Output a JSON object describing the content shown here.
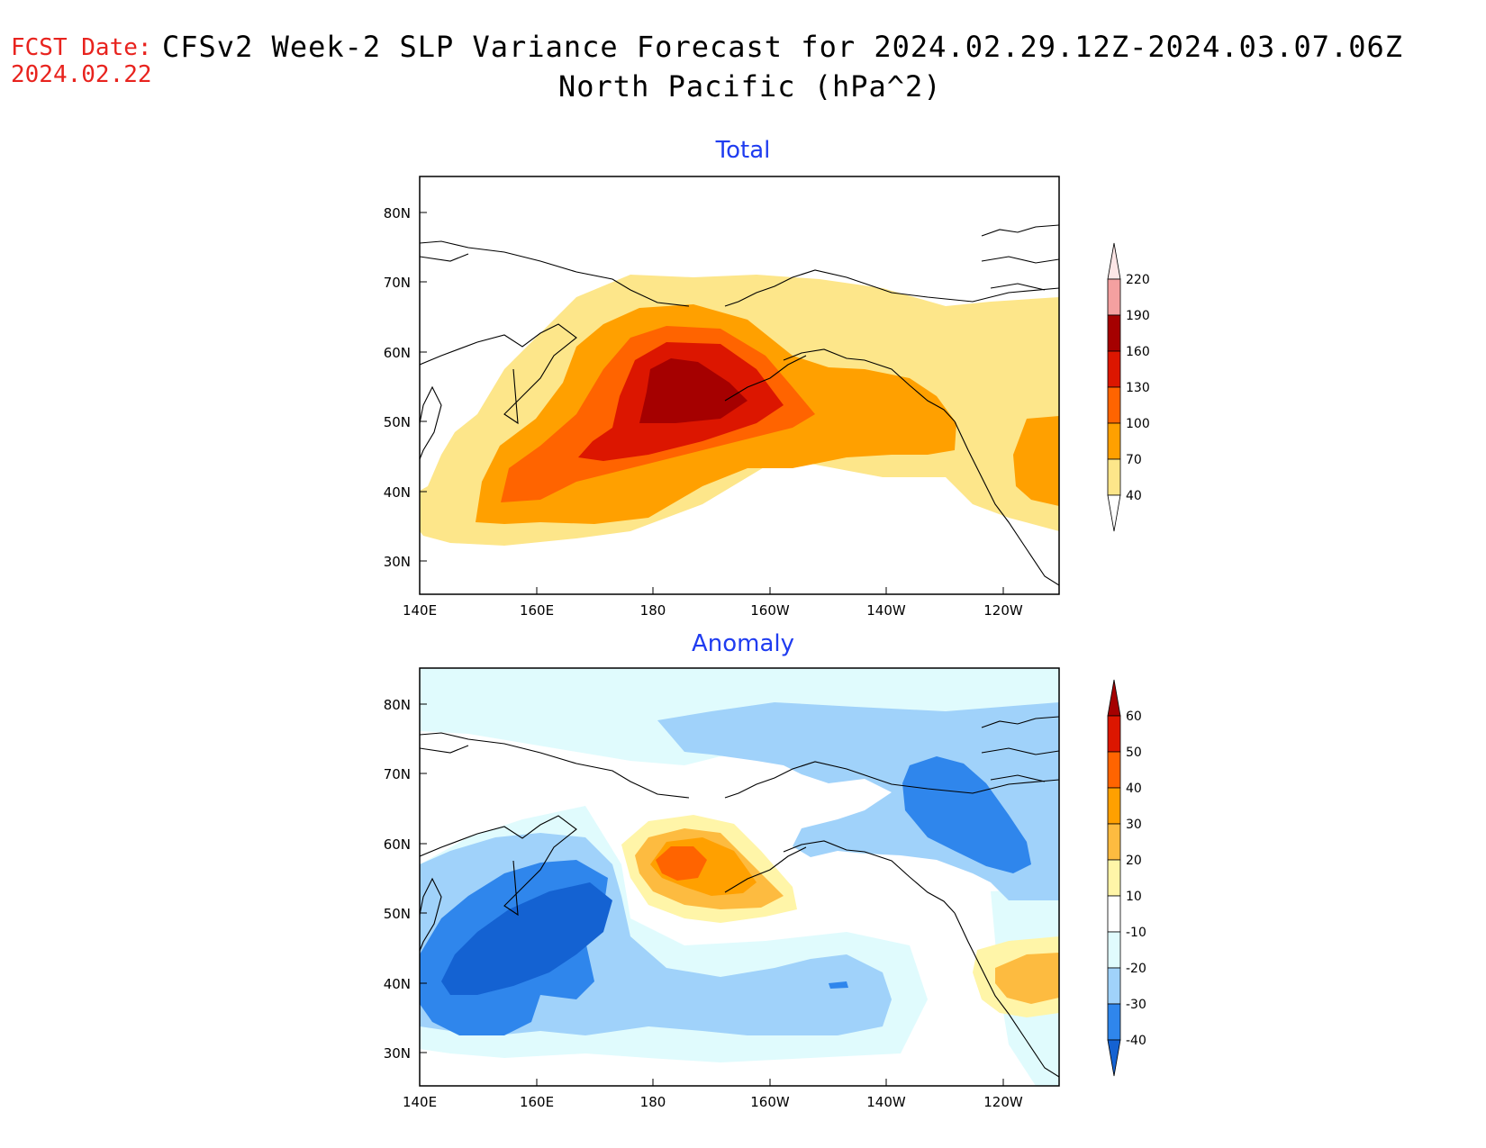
{
  "header": {
    "fcst_label": "FCST Date:",
    "fcst_date": "2024.02.22",
    "title_line1": "CFSv2 Week-2 SLP Variance Forecast for 2024.02.29.12Z-2024.03.07.06Z",
    "title_line2": "North Pacific (hPa^2)"
  },
  "axes": {
    "lat_labels": [
      "80N",
      "70N",
      "60N",
      "50N",
      "40N",
      "30N"
    ],
    "lon_labels": [
      "140E",
      "160E",
      "180",
      "160W",
      "140W",
      "120W"
    ]
  },
  "panels": [
    {
      "title": "Total",
      "colorbar": {
        "labels": [
          "220",
          "190",
          "160",
          "130",
          "100",
          "70",
          "40"
        ],
        "colors": [
          "#fcdcdc",
          "#f4a0a0",
          "#a50000",
          "#dc1600",
          "#ff6400",
          "#ffa000",
          "#fde68a"
        ]
      }
    },
    {
      "title": "Anomaly",
      "colorbar": {
        "labels": [
          "60",
          "50",
          "40",
          "30",
          "20",
          "10",
          "-10",
          "-20",
          "-30",
          "-40"
        ],
        "colors": [
          "#a50000",
          "#dc1600",
          "#ff6400",
          "#ffa000",
          "#fdbb40",
          "#fff5a8",
          "#ffffff",
          "#e0fbfd",
          "#a0d2fa",
          "#2f86ec",
          "#1462d2"
        ]
      }
    }
  ]
}
